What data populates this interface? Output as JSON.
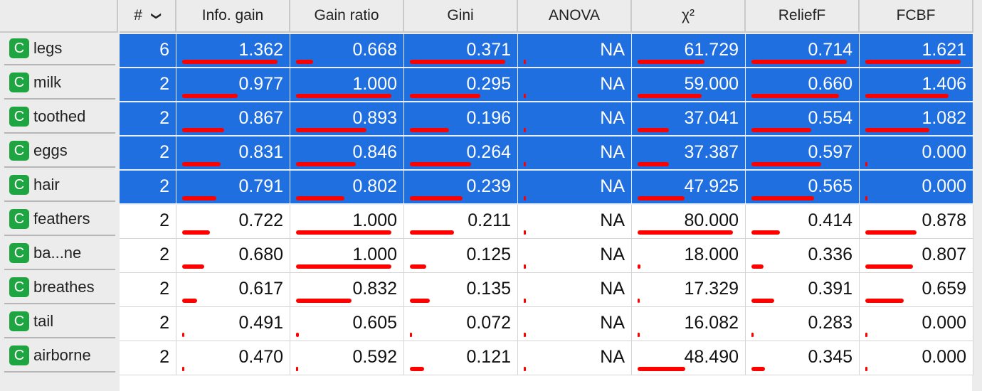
{
  "columns": [
    "#",
    "Info. gain",
    "Gain ratio",
    "Gini",
    "ANOVA",
    "χ²",
    "ReliefF",
    "FCBF"
  ],
  "sort_indicator": "chevron-down",
  "type_badge": "C",
  "colors": {
    "selected": "#1f6fe0",
    "bar": "#ff0000",
    "badge": "#1ea541"
  },
  "rows": [
    {
      "name": "legs",
      "selected": true,
      "values": [
        "6",
        "1.362",
        "0.668",
        "0.371",
        "NA",
        "61.729",
        "0.714",
        "1.621"
      ],
      "bars": [
        null,
        1.0,
        0.18,
        1.0,
        0.0,
        0.7,
        1.0,
        1.0
      ]
    },
    {
      "name": "milk",
      "selected": true,
      "values": [
        "2",
        "0.977",
        "1.000",
        "0.295",
        "NA",
        "59.000",
        "0.660",
        "1.406"
      ],
      "bars": [
        null,
        0.58,
        1.0,
        0.74,
        0.0,
        0.67,
        0.92,
        0.87
      ]
    },
    {
      "name": "toothed",
      "selected": true,
      "values": [
        "2",
        "0.867",
        "0.893",
        "0.196",
        "NA",
        "37.041",
        "0.554",
        "1.082"
      ],
      "bars": [
        null,
        0.44,
        0.74,
        0.41,
        0.0,
        0.33,
        0.63,
        0.67
      ]
    },
    {
      "name": "eggs",
      "selected": true,
      "values": [
        "2",
        "0.831",
        "0.846",
        "0.264",
        "NA",
        "37.387",
        "0.597",
        "0.000"
      ],
      "bars": [
        null,
        0.4,
        0.63,
        0.64,
        0.0,
        0.33,
        0.73,
        0.0
      ]
    },
    {
      "name": "hair",
      "selected": true,
      "values": [
        "2",
        "0.791",
        "0.802",
        "0.239",
        "NA",
        "47.925",
        "0.565",
        "0.000"
      ],
      "bars": [
        null,
        0.36,
        0.51,
        0.55,
        0.0,
        0.49,
        0.66,
        0.0
      ]
    },
    {
      "name": "feathers",
      "selected": false,
      "values": [
        "2",
        "0.722",
        "1.000",
        "0.211",
        "NA",
        "80.000",
        "0.414",
        "0.878"
      ],
      "bars": [
        null,
        0.29,
        1.0,
        0.46,
        0.0,
        1.0,
        0.3,
        0.54
      ]
    },
    {
      "name": "ba...ne",
      "selected": false,
      "values": [
        "2",
        "0.680",
        "1.000",
        "0.125",
        "NA",
        "18.000",
        "0.336",
        "0.807"
      ],
      "bars": [
        null,
        0.23,
        1.0,
        0.17,
        0.0,
        0.03,
        0.13,
        0.5
      ]
    },
    {
      "name": "breathes",
      "selected": false,
      "values": [
        "2",
        "0.617",
        "0.832",
        "0.135",
        "NA",
        "17.329",
        "0.391",
        "0.659"
      ],
      "bars": [
        null,
        0.16,
        0.58,
        0.21,
        0.0,
        0.02,
        0.24,
        0.4
      ]
    },
    {
      "name": "tail",
      "selected": false,
      "values": [
        "2",
        "0.491",
        "0.605",
        "0.072",
        "NA",
        "16.082",
        "0.283",
        "0.000"
      ],
      "bars": [
        null,
        0.02,
        0.03,
        0.0,
        0.0,
        0.0,
        0.0,
        0.0
      ]
    },
    {
      "name": "airborne",
      "selected": false,
      "values": [
        "2",
        "0.470",
        "0.592",
        "0.121",
        "NA",
        "48.490",
        "0.345",
        "0.000"
      ],
      "bars": [
        null,
        0.0,
        0.0,
        0.15,
        0.0,
        0.5,
        0.14,
        0.0
      ]
    }
  ]
}
